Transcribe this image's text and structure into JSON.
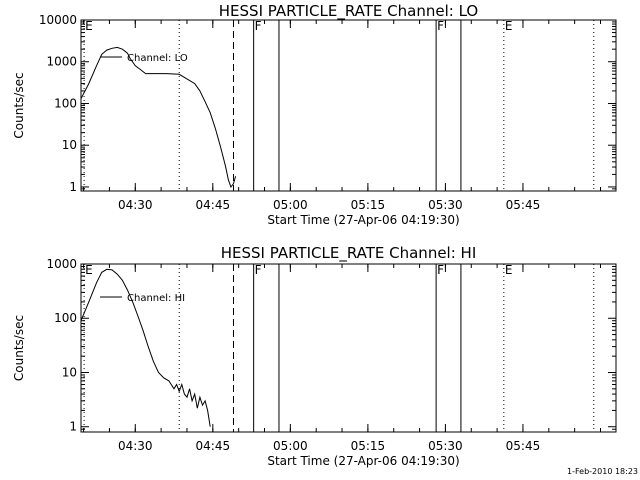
{
  "chart_data": [
    {
      "type": "line",
      "title": "HESSI PARTICLE_RATE Channel: LO",
      "xlabel": "Start Time (27-Apr-06 04:19:30)",
      "ylabel": "Counts/sec",
      "x_unit": "minutes after 04:19:30",
      "xlim": [
        0,
        103.5
      ],
      "ylim": [
        0.8,
        10000
      ],
      "yscale": "log",
      "x_ticks": [
        {
          "x": 10.5,
          "label": "04:30"
        },
        {
          "x": 25.5,
          "label": "04:45"
        },
        {
          "x": 40.5,
          "label": "05:00"
        },
        {
          "x": 55.5,
          "label": "05:15"
        },
        {
          "x": 70.5,
          "label": "05:30"
        },
        {
          "x": 85.5,
          "label": "05:45"
        }
      ],
      "y_ticks": [
        {
          "y": 1,
          "label": "1"
        },
        {
          "y": 10,
          "label": "10"
        },
        {
          "y": 100,
          "label": "100"
        },
        {
          "y": 1000,
          "label": "1000"
        },
        {
          "y": 10000,
          "label": "10000"
        }
      ],
      "series": [
        {
          "name": "Channel: LO",
          "x": [
            0,
            1.5,
            3,
            4,
            5,
            6,
            7,
            8,
            9,
            9.5,
            10.5,
            11.5,
            12.5,
            13.5,
            14.5,
            15.5,
            16.5,
            19,
            22,
            23,
            24,
            25,
            26,
            27,
            28,
            28.5,
            29,
            29.5,
            29.9
          ],
          "y": [
            130,
            300,
            800,
            1500,
            1900,
            2100,
            2200,
            2000,
            1600,
            1200,
            800,
            650,
            520,
            520,
            520,
            520,
            520,
            500,
            300,
            200,
            110,
            60,
            25,
            9,
            3,
            1.5,
            1,
            1.2,
            1.8
          ]
        }
      ],
      "event_markers": [
        {
          "x": 0.6,
          "label": "E",
          "style": "dotted"
        },
        {
          "x": 19,
          "label": "",
          "style": "dotted"
        },
        {
          "x": 29.5,
          "label": "",
          "style": "dashed"
        },
        {
          "x": 33.4,
          "label": "F",
          "style": "solid"
        },
        {
          "x": 38.3,
          "label": "",
          "style": "solid"
        },
        {
          "x": 68.7,
          "label": "F",
          "style": "solid"
        },
        {
          "x": 73.5,
          "label": "",
          "style": "solid"
        },
        {
          "x": 81.8,
          "label": "E",
          "style": "dotted"
        },
        {
          "x": 99.2,
          "label": "",
          "style": "dotted"
        }
      ]
    },
    {
      "type": "line",
      "title": "HESSI PARTICLE_RATE Channel: HI",
      "xlabel": "Start Time (27-Apr-06 04:19:30)",
      "ylabel": "Counts/sec",
      "x_unit": "minutes after 04:19:30",
      "xlim": [
        0,
        103.5
      ],
      "ylim": [
        0.8,
        1000
      ],
      "yscale": "log",
      "x_ticks": [
        {
          "x": 10.5,
          "label": "04:30"
        },
        {
          "x": 25.5,
          "label": "04:45"
        },
        {
          "x": 40.5,
          "label": "05:00"
        },
        {
          "x": 55.5,
          "label": "05:15"
        },
        {
          "x": 70.5,
          "label": "05:30"
        },
        {
          "x": 85.5,
          "label": "05:45"
        }
      ],
      "y_ticks": [
        {
          "y": 1,
          "label": "1"
        },
        {
          "y": 10,
          "label": "10"
        },
        {
          "y": 100,
          "label": "100"
        },
        {
          "y": 1000,
          "label": "1000"
        }
      ],
      "series": [
        {
          "name": "Channel: HI",
          "x": [
            0,
            1.5,
            3,
            4,
            5,
            6,
            7,
            8,
            9,
            10,
            11,
            12,
            13,
            14,
            15,
            16,
            17,
            18,
            18.5,
            19,
            19.5,
            20,
            20.5,
            21,
            21.5,
            22,
            22.5,
            23,
            23.5,
            24,
            24.5,
            25
          ],
          "y": [
            90,
            200,
            450,
            700,
            800,
            780,
            650,
            500,
            330,
            200,
            110,
            60,
            30,
            16,
            10,
            8,
            7,
            5,
            6,
            4.5,
            6,
            4,
            3.5,
            5,
            3,
            4,
            2.2,
            3.5,
            2.5,
            3,
            2,
            1
          ]
        }
      ],
      "event_markers": [
        {
          "x": 0.6,
          "label": "E",
          "style": "dotted"
        },
        {
          "x": 19,
          "label": "",
          "style": "dotted"
        },
        {
          "x": 29.5,
          "label": "",
          "style": "dashed"
        },
        {
          "x": 33.4,
          "label": "F",
          "style": "solid"
        },
        {
          "x": 38.3,
          "label": "",
          "style": "solid"
        },
        {
          "x": 68.7,
          "label": "F",
          "style": "solid"
        },
        {
          "x": 73.5,
          "label": "",
          "style": "solid"
        },
        {
          "x": 81.8,
          "label": "E",
          "style": "dotted"
        },
        {
          "x": 99.2,
          "label": "",
          "style": "dotted"
        }
      ]
    }
  ],
  "footer": {
    "timestamp": "1-Feb-2010 18:23"
  }
}
